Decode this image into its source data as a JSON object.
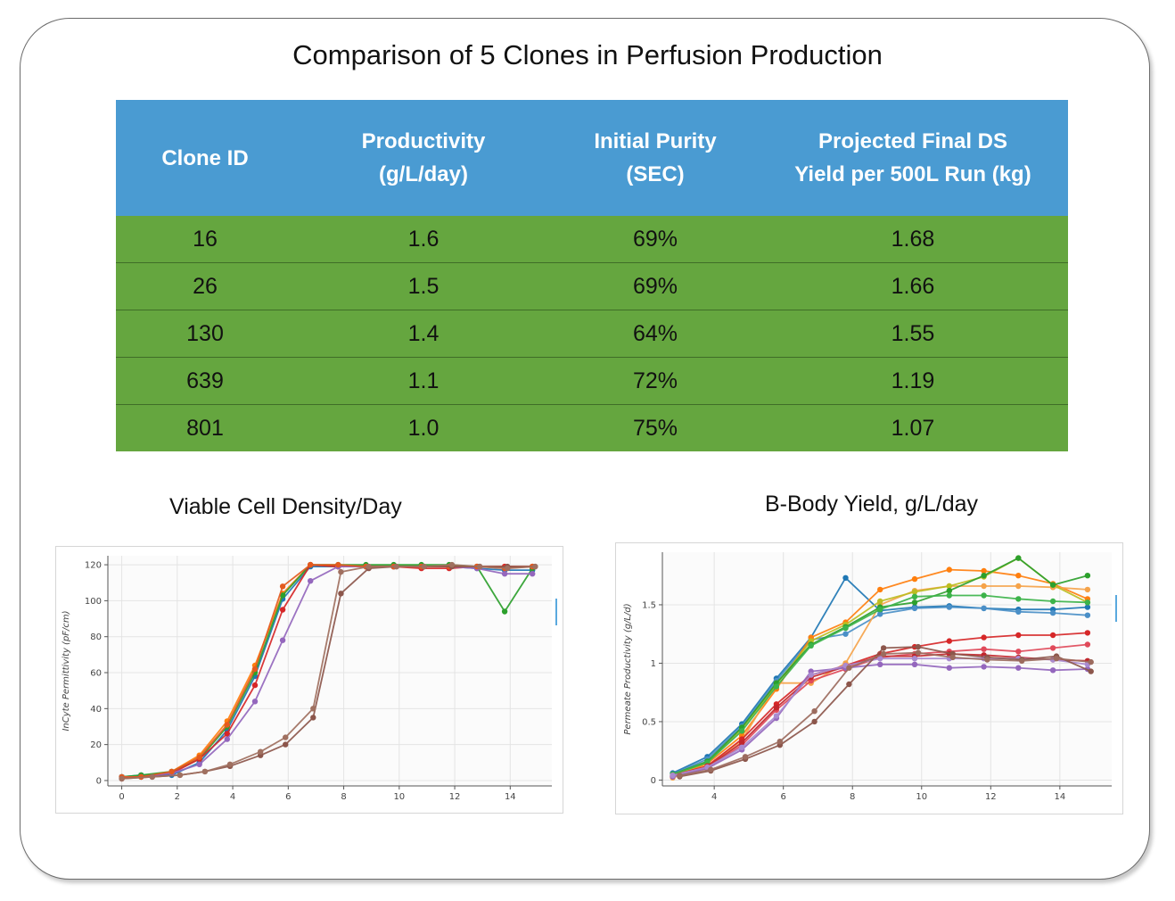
{
  "title": "Comparison of 5 Clones in Perfusion Production",
  "table": {
    "headers": [
      [
        "Clone ID"
      ],
      [
        "Productivity",
        "(g/L/day)"
      ],
      [
        "Initial Purity",
        "(SEC)"
      ],
      [
        "Projected Final DS",
        "Yield per 500L Run (kg)"
      ]
    ],
    "rows": [
      [
        "16",
        "1.6",
        "69%",
        "1.68"
      ],
      [
        "26",
        "1.5",
        "69%",
        "1.66"
      ],
      [
        "130",
        "1.4",
        "64%",
        "1.55"
      ],
      [
        "639",
        "1.1",
        "72%",
        "1.19"
      ],
      [
        "801",
        "1.0",
        "75%",
        "1.07"
      ]
    ],
    "colors": {
      "header_bg": "#4a9bd2",
      "row_bg": "#65a63f"
    }
  },
  "chart_data": [
    {
      "type": "line",
      "title": "Viable Cell Density/Day",
      "xlabel": "",
      "ylabel": "InCyte Permittivity (pF/cm)",
      "xlim": [
        -0.5,
        15.5
      ],
      "ylim": [
        -3,
        125
      ],
      "xticks": [
        0,
        2,
        4,
        6,
        8,
        10,
        12,
        14
      ],
      "yticks": [
        0,
        20,
        40,
        60,
        80,
        100,
        120
      ],
      "grid": true,
      "series": [
        {
          "color": "#1f77b4",
          "x": [
            0,
            0.7,
            1.8,
            2.8,
            3.8,
            4.8,
            5.8,
            6.8,
            7.8,
            8.8,
            9.8,
            10.8,
            11.8,
            12.8,
            13.8,
            14.8
          ],
          "y": [
            2,
            3,
            3,
            10,
            28,
            58,
            101,
            119,
            119,
            119,
            119,
            119,
            119,
            118,
            117,
            117
          ]
        },
        {
          "color": "#ff7f0e",
          "x": [
            0,
            0.7,
            1.8,
            2.8,
            3.8,
            4.8,
            5.8,
            6.8,
            7.8,
            8.8,
            9.8,
            10.8,
            11.8,
            12.8,
            13.8,
            14.8
          ],
          "y": [
            2,
            2,
            5,
            14,
            33,
            64,
            104,
            120,
            119,
            119,
            119,
            119,
            119,
            119,
            119,
            119
          ]
        },
        {
          "color": "#2ca02c",
          "x": [
            0,
            0.7,
            1.8,
            2.8,
            3.8,
            4.8,
            5.8,
            6.8,
            7.8,
            8.8,
            9.8,
            10.8,
            11.8,
            12.8,
            13.8,
            14.8
          ],
          "y": [
            2,
            3,
            5,
            12,
            30,
            60,
            103,
            120,
            120,
            120,
            120,
            120,
            120,
            119,
            94,
            118
          ]
        },
        {
          "color": "#d62728",
          "x": [
            0,
            0.7,
            1.8,
            2.8,
            3.8,
            4.8,
            5.8,
            6.8,
            7.8,
            8.8,
            9.8,
            10.8,
            11.8,
            12.8,
            13.8,
            14.8
          ],
          "y": [
            1,
            2,
            4,
            12,
            26,
            53,
            95,
            120,
            119,
            119,
            119,
            118,
            118,
            119,
            119,
            119
          ]
        },
        {
          "color": "#9467bd",
          "x": [
            0,
            0.7,
            1.8,
            2.8,
            3.8,
            4.8,
            5.8,
            6.8,
            7.8,
            8.8,
            9.8,
            10.8,
            11.8,
            12.8,
            13.8,
            14.8
          ],
          "y": [
            2,
            2,
            4,
            9,
            23,
            44,
            78,
            111,
            119,
            119,
            119,
            119,
            119,
            118,
            115,
            115
          ]
        },
        {
          "color": "#e45a1e",
          "x": [
            0,
            0.7,
            1.8,
            2.8,
            3.8,
            4.8,
            5.8,
            6.8,
            7.8,
            8.8,
            9.8,
            10.8,
            11.8,
            12.8,
            13.8,
            14.8
          ],
          "y": [
            2,
            2,
            5,
            13,
            31,
            62,
            108,
            120,
            120,
            119,
            119,
            119,
            119,
            119,
            118,
            119
          ]
        },
        {
          "color": "#8c564b",
          "x": [
            0,
            1.1,
            2.1,
            3.0,
            3.9,
            5.0,
            5.9,
            6.9,
            7.9,
            8.9,
            9.9,
            10.9,
            11.9,
            12.9,
            13.9,
            14.9
          ],
          "y": [
            1,
            2,
            3,
            5,
            8,
            14,
            20,
            35,
            104,
            118,
            119,
            119,
            119,
            119,
            119,
            119
          ]
        },
        {
          "color": "#a07060",
          "x": [
            0,
            1.1,
            2.1,
            3.0,
            3.9,
            5.0,
            5.9,
            6.9,
            7.9,
            8.9,
            9.9,
            10.9,
            11.9,
            12.9,
            13.9,
            14.9
          ],
          "y": [
            1,
            2,
            3,
            5,
            9,
            16,
            24,
            40,
            116,
            119,
            119,
            119,
            120,
            119,
            118,
            119
          ]
        }
      ]
    },
    {
      "type": "line",
      "title": "B-Body Yield, g/L/day",
      "xlabel": "",
      "ylabel": "Permeate Productivity (g/L/d)",
      "xlim": [
        2.5,
        15.5
      ],
      "ylim": [
        -0.05,
        1.95
      ],
      "xticks": [
        4,
        6,
        8,
        10,
        12,
        14
      ],
      "yticks": [
        0,
        0.5,
        1,
        1.5
      ],
      "grid": true,
      "series": [
        {
          "color": "#1f77b4",
          "x": [
            2.8,
            3.8,
            4.8,
            5.8,
            6.8,
            7.8,
            8.8,
            9.8,
            10.8,
            11.8,
            12.8,
            13.8,
            14.8
          ],
          "y": [
            0.06,
            0.2,
            0.48,
            0.87,
            1.22,
            1.73,
            1.45,
            1.48,
            1.49,
            1.47,
            1.46,
            1.46,
            1.48
          ]
        },
        {
          "color": "#4a8fc7",
          "x": [
            2.8,
            3.8,
            4.8,
            5.8,
            6.8,
            7.8,
            8.8,
            9.8,
            10.8,
            11.8,
            12.8,
            13.8,
            14.8
          ],
          "y": [
            0.05,
            0.18,
            0.46,
            0.85,
            1.2,
            1.25,
            1.42,
            1.47,
            1.48,
            1.47,
            1.44,
            1.43,
            1.41
          ]
        },
        {
          "color": "#ff7f0e",
          "x": [
            2.8,
            3.8,
            4.8,
            5.8,
            6.8,
            7.8,
            8.8,
            9.8,
            10.8,
            11.8,
            12.8,
            13.8,
            14.8
          ],
          "y": [
            0.03,
            0.14,
            0.38,
            0.78,
            1.22,
            1.35,
            1.63,
            1.72,
            1.8,
            1.79,
            1.75,
            1.68,
            1.55
          ]
        },
        {
          "color": "#f5a34a",
          "x": [
            2.8,
            3.8,
            4.8,
            5.8,
            6.8,
            7.8,
            8.8,
            9.8,
            10.8,
            11.8,
            12.8,
            13.8,
            14.8
          ],
          "y": [
            0.02,
            0.12,
            0.34,
            0.83,
            0.83,
            1.0,
            1.5,
            1.62,
            1.66,
            1.66,
            1.66,
            1.65,
            1.63
          ]
        },
        {
          "color": "#bcbd22",
          "x": [
            2.8,
            3.8,
            4.8,
            5.8,
            6.8,
            7.8,
            8.8,
            9.8,
            10.8,
            11.8,
            12.8,
            13.8,
            14.8
          ],
          "y": [
            0.04,
            0.15,
            0.44,
            0.82,
            1.19,
            1.33,
            1.53,
            1.61,
            1.66,
            1.74,
            1.9,
            1.67,
            1.52
          ]
        },
        {
          "color": "#2ca02c",
          "x": [
            2.8,
            3.8,
            4.8,
            5.8,
            6.8,
            7.8,
            8.8,
            9.8,
            10.8,
            11.8,
            12.8,
            13.8,
            14.8
          ],
          "y": [
            0.05,
            0.16,
            0.45,
            0.83,
            1.16,
            1.31,
            1.48,
            1.52,
            1.62,
            1.75,
            1.9,
            1.67,
            1.75
          ]
        },
        {
          "color": "#3cb34a",
          "x": [
            2.8,
            3.8,
            4.8,
            5.8,
            6.8,
            7.8,
            8.8,
            9.8,
            10.8,
            11.8,
            12.8,
            13.8,
            14.8
          ],
          "y": [
            0.05,
            0.15,
            0.42,
            0.8,
            1.15,
            1.3,
            1.46,
            1.57,
            1.58,
            1.58,
            1.55,
            1.53,
            1.52
          ]
        },
        {
          "color": "#d62728",
          "x": [
            2.8,
            3.8,
            4.8,
            5.8,
            6.8,
            7.8,
            8.8,
            9.8,
            10.8,
            11.8,
            12.8,
            13.8,
            14.8
          ],
          "y": [
            0.04,
            0.12,
            0.35,
            0.65,
            0.9,
            0.98,
            1.08,
            1.14,
            1.19,
            1.22,
            1.24,
            1.24,
            1.26
          ]
        },
        {
          "color": "#e04a5a",
          "x": [
            2.8,
            3.8,
            4.8,
            5.8,
            6.8,
            7.8,
            8.8,
            9.8,
            10.8,
            11.8,
            12.8,
            13.8,
            14.8
          ],
          "y": [
            0.03,
            0.1,
            0.3,
            0.6,
            0.85,
            0.95,
            1.05,
            1.08,
            1.1,
            1.12,
            1.1,
            1.13,
            1.16
          ]
        },
        {
          "color": "#c1272d",
          "x": [
            2.8,
            3.8,
            4.8,
            5.8,
            6.8,
            7.8,
            8.8,
            9.8,
            10.8,
            11.8,
            12.8,
            13.8,
            14.8
          ],
          "y": [
            0.03,
            0.11,
            0.32,
            0.62,
            0.88,
            0.97,
            1.06,
            1.06,
            1.08,
            1.07,
            1.05,
            1.03,
            1.02
          ]
        },
        {
          "color": "#9467bd",
          "x": [
            2.8,
            3.8,
            4.8,
            5.8,
            6.8,
            7.8,
            8.8,
            9.8,
            10.8,
            11.8,
            12.8,
            13.8,
            14.8
          ],
          "y": [
            0.03,
            0.1,
            0.26,
            0.53,
            0.93,
            0.96,
            0.99,
            0.99,
            0.96,
            0.97,
            0.96,
            0.94,
            0.95
          ]
        },
        {
          "color": "#a98bd0",
          "x": [
            2.8,
            3.8,
            4.8,
            5.8,
            6.8,
            7.8,
            8.8,
            9.8,
            10.8,
            11.8,
            12.8,
            13.8,
            14.8
          ],
          "y": [
            0.04,
            0.11,
            0.28,
            0.55,
            0.9,
            0.98,
            1.04,
            1.04,
            1.04,
            1.04,
            1.04,
            1.03,
            0.99
          ]
        },
        {
          "color": "#8c564b",
          "x": [
            3.0,
            3.9,
            4.9,
            5.9,
            6.9,
            7.9,
            8.9,
            9.9,
            10.9,
            11.9,
            12.9,
            13.9,
            14.9
          ],
          "y": [
            0.03,
            0.08,
            0.18,
            0.3,
            0.5,
            0.82,
            1.13,
            1.14,
            1.08,
            1.05,
            1.03,
            1.06,
            0.93
          ]
        },
        {
          "color": "#9c6b5e",
          "x": [
            3.0,
            3.9,
            4.9,
            5.9,
            6.9,
            7.9,
            8.9,
            9.9,
            10.9,
            11.9,
            12.9,
            13.9,
            14.9
          ],
          "y": [
            0.04,
            0.09,
            0.2,
            0.33,
            0.59,
            0.96,
            1.08,
            1.09,
            1.05,
            1.03,
            1.02,
            1.04,
            1.01
          ]
        }
      ]
    }
  ]
}
